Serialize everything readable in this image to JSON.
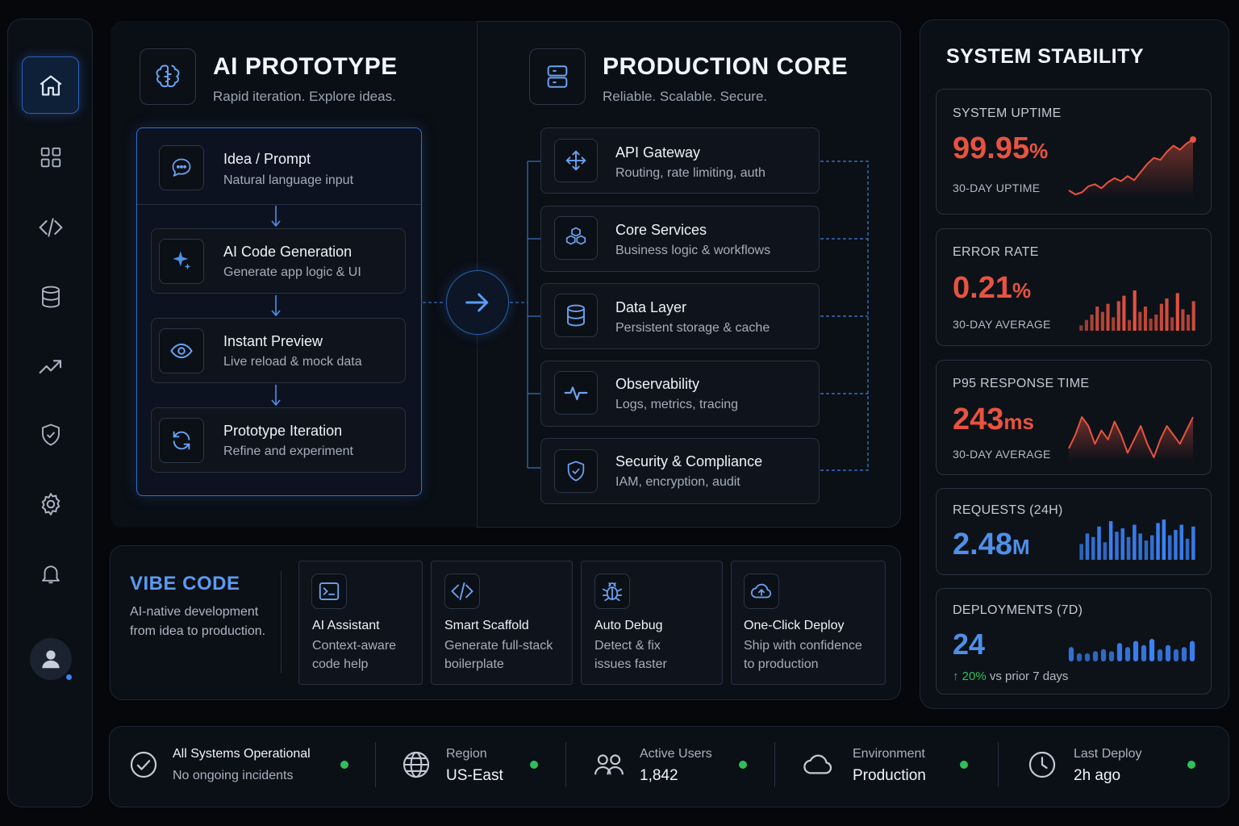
{
  "colors": {
    "accent": "#3b82f6",
    "danger": "#e8533f",
    "success": "#2fbf5a",
    "panel": "#0b0f16"
  },
  "sidebar": {
    "items": [
      {
        "icon": "home-icon",
        "active": true
      },
      {
        "icon": "grid-icon"
      },
      {
        "icon": "code-icon"
      },
      {
        "icon": "database-icon"
      },
      {
        "icon": "trending-icon"
      },
      {
        "icon": "shield-icon"
      },
      {
        "icon": "settings-icon"
      },
      {
        "icon": "bell-icon"
      }
    ],
    "avatar": "user-avatar"
  },
  "prototype": {
    "title": "AI PROTOTYPE",
    "subtitle": "Rapid iteration. Explore ideas.",
    "steps": [
      {
        "title": "Idea / Prompt",
        "desc": "Natural language input",
        "icon": "chat-icon"
      },
      {
        "title": "AI Code Generation",
        "desc": "Generate app logic & UI",
        "icon": "sparkle-icon"
      },
      {
        "title": "Instant Preview",
        "desc": "Live reload & mock data",
        "icon": "eye-icon"
      },
      {
        "title": "Prototype Iteration",
        "desc": "Refine and experiment",
        "icon": "refresh-icon"
      }
    ]
  },
  "production": {
    "title": "PRODUCTION CORE",
    "subtitle": "Reliable. Scalable. Secure.",
    "layers": [
      {
        "title": "API Gateway",
        "desc": "Routing, rate limiting, auth",
        "icon": "gateway-icon"
      },
      {
        "title": "Core Services",
        "desc": "Business logic & workflows",
        "icon": "cubes-icon"
      },
      {
        "title": "Data Layer",
        "desc": "Persistent storage & cache",
        "icon": "database-icon"
      },
      {
        "title": "Observability",
        "desc": "Logs, metrics, tracing",
        "icon": "pulse-icon"
      },
      {
        "title": "Security & Compliance",
        "desc": "IAM, encryption, audit",
        "icon": "shield-icon"
      }
    ]
  },
  "vibe": {
    "title": "VIBE CODE",
    "desc_line1": "AI-native development",
    "desc_line2": "from idea to production.",
    "features": [
      {
        "title": "AI Assistant",
        "line1": "Context-aware",
        "line2": "code help",
        "icon": "terminal-icon"
      },
      {
        "title": "Smart Scaffold",
        "line1": "Generate full-stack",
        "line2": "boilerplate",
        "icon": "code-icon"
      },
      {
        "title": "Auto Debug",
        "line1": "Detect & fix",
        "line2": "issues faster",
        "icon": "bug-icon"
      },
      {
        "title": "One-Click Deploy",
        "line1": "Ship with confidence",
        "line2": "to production",
        "icon": "cloud-upload-icon"
      }
    ]
  },
  "stability": {
    "title": "SYSTEM STABILITY",
    "uptime": {
      "label": "SYSTEM UPTIME",
      "value": "99.95",
      "unit": "%",
      "sub": "30-DAY UPTIME",
      "chart": [
        20,
        16,
        18,
        24,
        26,
        22,
        28,
        32,
        29,
        34,
        30,
        38,
        46,
        52,
        50,
        58,
        64,
        60,
        66,
        70
      ]
    },
    "errors": {
      "label": "ERROR RATE",
      "value": "0.21",
      "unit": "%",
      "sub": "30-DAY AVERAGE",
      "chart": [
        4,
        8,
        12,
        18,
        14,
        20,
        10,
        22,
        26,
        8,
        30,
        14,
        18,
        9,
        12,
        20,
        24,
        10,
        28,
        16,
        12,
        22
      ]
    },
    "p95": {
      "label": "P95 RESPONSE TIME",
      "value": "243",
      "unit": "ms",
      "sub": "30-DAY AVERAGE",
      "chart": [
        20,
        26,
        34,
        30,
        22,
        28,
        24,
        32,
        26,
        18,
        24,
        30,
        22,
        16,
        24,
        30,
        26,
        22,
        28,
        34
      ]
    },
    "requests": {
      "label": "REQUESTS (24H)",
      "value": "2.48",
      "unit": "M",
      "chart": [
        18,
        30,
        26,
        38,
        20,
        44,
        32,
        36,
        26,
        40,
        30,
        22,
        28,
        42,
        46,
        28,
        34,
        40,
        24,
        38
      ]
    },
    "deployments": {
      "label": "DEPLOYMENTS (7D)",
      "value": "24",
      "change": "20%",
      "change_suffix": "vs prior 7 days",
      "chart": [
        14,
        8,
        8,
        10,
        12,
        10,
        18,
        14,
        20,
        16,
        22,
        12,
        16,
        12,
        14,
        20
      ]
    }
  },
  "status": {
    "overall": {
      "title": "All Systems Operational",
      "sub": "No ongoing incidents"
    },
    "region": {
      "label": "Region",
      "value": "US-East"
    },
    "users": {
      "label": "Active Users",
      "value": "1,842"
    },
    "environment": {
      "label": "Environment",
      "value": "Production"
    },
    "deploy": {
      "label": "Last Deploy",
      "value": "2h ago"
    }
  }
}
